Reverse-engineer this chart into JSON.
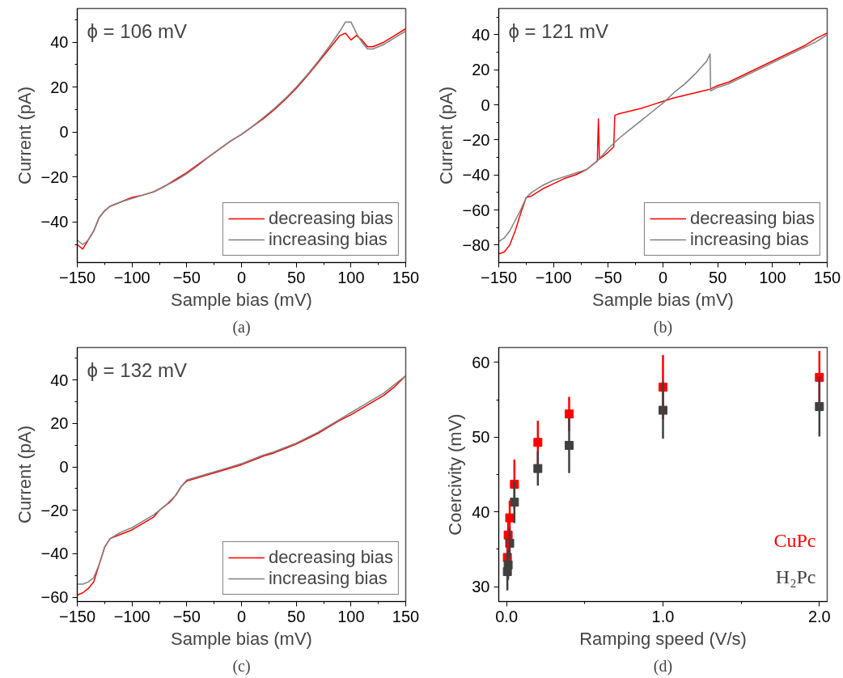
{
  "chart_data": [
    {
      "type": "line",
      "xlabel": "Sample bias (mV)",
      "ylabel": "Current (pA)",
      "annotations": [
        "ϕ = 106 mV",
        "(a)"
      ],
      "xlim": [
        -150,
        150
      ],
      "ylim": [
        -58,
        55
      ],
      "xticks": [
        -150,
        {
          "value": -125,
          "label": null
        },
        -100,
        {
          "value": -75,
          "label": null
        },
        -50,
        {
          "value": -25,
          "label": null
        },
        0,
        {
          "value": 25,
          "label": null
        },
        50,
        {
          "value": 75,
          "label": null
        },
        100,
        {
          "value": 125,
          "label": null
        },
        150
      ],
      "yticks": [
        {
          "value": -50,
          "label": null
        },
        -40,
        {
          "value": -30,
          "label": null
        },
        -20,
        {
          "value": -10,
          "label": null
        },
        0,
        {
          "value": 10,
          "label": null
        },
        20,
        {
          "value": 30,
          "label": null
        },
        40,
        {
          "value": 50,
          "label": null
        }
      ],
      "grid": false,
      "legend": "bottom right",
      "series": [
        {
          "name": "decreasing bias",
          "color": "#ff0000",
          "x": [
            -150,
            -145,
            -140,
            -135,
            -130,
            -125,
            -120,
            -110,
            -100,
            -90,
            -80,
            -70,
            -60,
            -50,
            -40,
            -30,
            -20,
            -10,
            0,
            10,
            20,
            30,
            40,
            50,
            60,
            70,
            80,
            90,
            95,
            100,
            105,
            110,
            115,
            120,
            130,
            140,
            150
          ],
          "values": [
            -50,
            -52,
            -48,
            -44,
            -38,
            -35,
            -33,
            -31,
            -29,
            -28,
            -26.5,
            -24,
            -21,
            -18,
            -14.5,
            -11,
            -7.5,
            -4,
            -1,
            2.5,
            6,
            10,
            14.5,
            19.5,
            25,
            31,
            37,
            43,
            44,
            41,
            43,
            41,
            38,
            38,
            40,
            43,
            46
          ]
        },
        {
          "name": "increasing bias",
          "color": "#808080",
          "x": [
            -150,
            -145,
            -140,
            -135,
            -130,
            -125,
            -120,
            -110,
            -100,
            -90,
            -80,
            -70,
            -60,
            -50,
            -40,
            -30,
            -20,
            -10,
            0,
            10,
            20,
            30,
            40,
            50,
            60,
            70,
            80,
            90,
            95,
            100,
            105,
            110,
            115,
            120,
            130,
            140,
            150
          ],
          "values": [
            -48,
            -50,
            -48,
            -44,
            -38,
            -35,
            -33,
            -31,
            -29.5,
            -28,
            -26.5,
            -24,
            -21.5,
            -18.5,
            -15,
            -11,
            -7.5,
            -4,
            -1,
            2.5,
            6.5,
            10.5,
            15,
            20,
            25.5,
            31.5,
            38,
            45,
            49,
            49,
            44,
            40,
            37,
            37,
            39,
            42,
            45
          ]
        }
      ]
    },
    {
      "type": "line",
      "xlabel": "Sample bias (mV)",
      "ylabel": "Current (pA)",
      "annotations": [
        "ϕ = 121 mV",
        "(b)"
      ],
      "xlim": [
        -150,
        150
      ],
      "ylim": [
        -90,
        55
      ],
      "xticks": [
        -150,
        {
          "value": -125,
          "label": null
        },
        -100,
        {
          "value": -75,
          "label": null
        },
        -50,
        {
          "value": -25,
          "label": null
        },
        0,
        {
          "value": 25,
          "label": null
        },
        50,
        {
          "value": 75,
          "label": null
        },
        100,
        {
          "value": 125,
          "label": null
        },
        150
      ],
      "yticks": [
        -80,
        {
          "value": -70,
          "label": null
        },
        -60,
        {
          "value": -50,
          "label": null
        },
        -40,
        {
          "value": -30,
          "label": null
        },
        -20,
        {
          "value": -10,
          "label": null
        },
        0,
        {
          "value": 10,
          "label": null
        },
        20,
        {
          "value": 30,
          "label": null
        },
        40,
        {
          "value": 50,
          "label": null
        }
      ],
      "grid": false,
      "legend": "bottom right",
      "series": [
        {
          "name": "decreasing bias",
          "color": "#ff0000",
          "x": [
            -150,
            -145,
            -140,
            -135,
            -130,
            -125,
            -120,
            -110,
            -100,
            -90,
            -80,
            -70,
            -62,
            -60,
            -59,
            -58,
            -50,
            -45,
            -44,
            -40,
            -30,
            -20,
            -10,
            0,
            10,
            20,
            30,
            40,
            43,
            50,
            60,
            70,
            80,
            90,
            100,
            110,
            120,
            130,
            140,
            150
          ],
          "values": [
            -85,
            -84,
            -80,
            -72,
            -62,
            -53,
            -52,
            -48,
            -45,
            -42,
            -40,
            -37,
            -33,
            -32,
            -8,
            -31,
            -27,
            -24,
            -6,
            -5,
            -3.5,
            -2,
            0,
            2,
            4,
            5.5,
            7,
            8.5,
            9,
            11,
            13,
            16,
            19,
            22,
            25,
            28,
            31,
            34,
            38,
            41
          ]
        },
        {
          "name": "increasing bias",
          "color": "#808080",
          "x": [
            -150,
            -145,
            -140,
            -135,
            -130,
            -125,
            -120,
            -110,
            -100,
            -90,
            -80,
            -70,
            -60,
            -50,
            -40,
            -30,
            -20,
            -10,
            0,
            10,
            20,
            30,
            40,
            43,
            43.5,
            50,
            60,
            70,
            80,
            90,
            100,
            110,
            120,
            130,
            140,
            150
          ],
          "values": [
            -78,
            -76,
            -72,
            -66,
            -60,
            -53,
            -50,
            -46,
            -43,
            -41,
            -39,
            -37,
            -32,
            -25,
            -19,
            -14,
            -9,
            -4,
            1,
            7,
            12,
            18,
            25,
            29,
            8,
            10,
            12,
            15,
            18,
            21,
            24,
            27,
            30,
            33,
            36,
            40
          ]
        }
      ]
    },
    {
      "type": "line",
      "xlabel": "Sample bias (mV)",
      "ylabel": "Current (pA)",
      "annotations": [
        "ϕ = 132 mV",
        "(c)"
      ],
      "xlim": [
        -150,
        150
      ],
      "ylim": [
        -62,
        55
      ],
      "xticks": [
        -150,
        {
          "value": -125,
          "label": null
        },
        -100,
        {
          "value": -75,
          "label": null
        },
        -50,
        {
          "value": -25,
          "label": null
        },
        0,
        {
          "value": 25,
          "label": null
        },
        50,
        {
          "value": 75,
          "label": null
        },
        100,
        {
          "value": 125,
          "label": null
        },
        150
      ],
      "yticks": [
        -60,
        {
          "value": -50,
          "label": null
        },
        -40,
        {
          "value": -30,
          "label": null
        },
        -20,
        {
          "value": -10,
          "label": null
        },
        0,
        {
          "value": 10,
          "label": null
        },
        20,
        {
          "value": 30,
          "label": null
        },
        40,
        {
          "value": 50,
          "label": null
        }
      ],
      "grid": false,
      "legend": "bottom right",
      "series": [
        {
          "name": "decreasing bias",
          "color": "#ff0000",
          "x": [
            -150,
            -145,
            -140,
            -135,
            -130,
            -125,
            -120,
            -110,
            -100,
            -90,
            -80,
            -75,
            -70,
            -65,
            -60,
            -55,
            -50,
            -40,
            -30,
            -20,
            -10,
            0,
            10,
            20,
            30,
            40,
            50,
            60,
            70,
            80,
            90,
            100,
            110,
            120,
            130,
            140,
            150
          ],
          "values": [
            -59,
            -58,
            -56,
            -53,
            -45,
            -37,
            -33,
            -31,
            -29,
            -26,
            -23,
            -20,
            -18,
            -16,
            -13,
            -9,
            -6.5,
            -5,
            -3.5,
            -2,
            -0.5,
            1,
            3,
            5,
            6.5,
            8.5,
            10.5,
            13,
            15.5,
            18.5,
            21.5,
            24,
            27,
            30,
            33,
            37,
            42
          ]
        },
        {
          "name": "increasing bias",
          "color": "#808080",
          "x": [
            -150,
            -145,
            -140,
            -135,
            -130,
            -125,
            -120,
            -110,
            -100,
            -90,
            -80,
            -70,
            -60,
            -55,
            -50,
            -40,
            -30,
            -20,
            -10,
            0,
            10,
            20,
            30,
            40,
            50,
            60,
            70,
            80,
            90,
            100,
            110,
            120,
            130,
            140,
            150
          ],
          "values": [
            -54,
            -54,
            -53,
            -51,
            -45,
            -37,
            -33,
            -30,
            -28,
            -25,
            -22,
            -18,
            -13,
            -9,
            -6,
            -4.5,
            -3,
            -1.5,
            0,
            1.5,
            3.5,
            5.5,
            7,
            9,
            11,
            13.5,
            16,
            19,
            22,
            25,
            28,
            31,
            34,
            38,
            42
          ]
        }
      ]
    },
    {
      "type": "scatter",
      "xlabel": "Ramping speed (V/s)",
      "ylabel": "Coercivity (mV)",
      "annotations": [
        "(d)"
      ],
      "xlim": [
        -0.05,
        2.05
      ],
      "ylim": [
        28,
        62
      ],
      "xticks": [
        {
          "value": 0,
          "label": "0.0"
        },
        {
          "value": 0.5,
          "label": null
        },
        {
          "value": 1,
          "label": "1.0"
        },
        {
          "value": 1.5,
          "label": null
        },
        {
          "value": 2,
          "label": "2.0"
        }
      ],
      "yticks": [
        30,
        {
          "value": 35,
          "label": null
        },
        40,
        {
          "value": 45,
          "label": null
        },
        50,
        {
          "value": 55,
          "label": null
        },
        60
      ],
      "grid": false,
      "marker": "square",
      "x": [
        0.005,
        0.01,
        0.02,
        0.05,
        0.2,
        0.4,
        1,
        2
      ],
      "series": [
        {
          "name": "CuPc",
          "color": "#ff0000",
          "values": [
            33.9,
            36.9,
            39.2,
            43.7,
            49.3,
            53.1,
            56.7,
            58.0
          ],
          "errors": [
            2,
            2,
            2.3,
            3.3,
            2.9,
            2.3,
            4.3,
            3.5
          ]
        },
        {
          "name": "H₂Pc",
          "color": "#404040",
          "values": [
            32.0,
            32.9,
            35.8,
            41.3,
            45.8,
            48.9,
            53.6,
            54.1
          ],
          "errors": [
            2.5,
            2,
            2,
            2.8,
            2.3,
            3.7,
            3.8,
            4
          ]
        }
      ]
    }
  ]
}
